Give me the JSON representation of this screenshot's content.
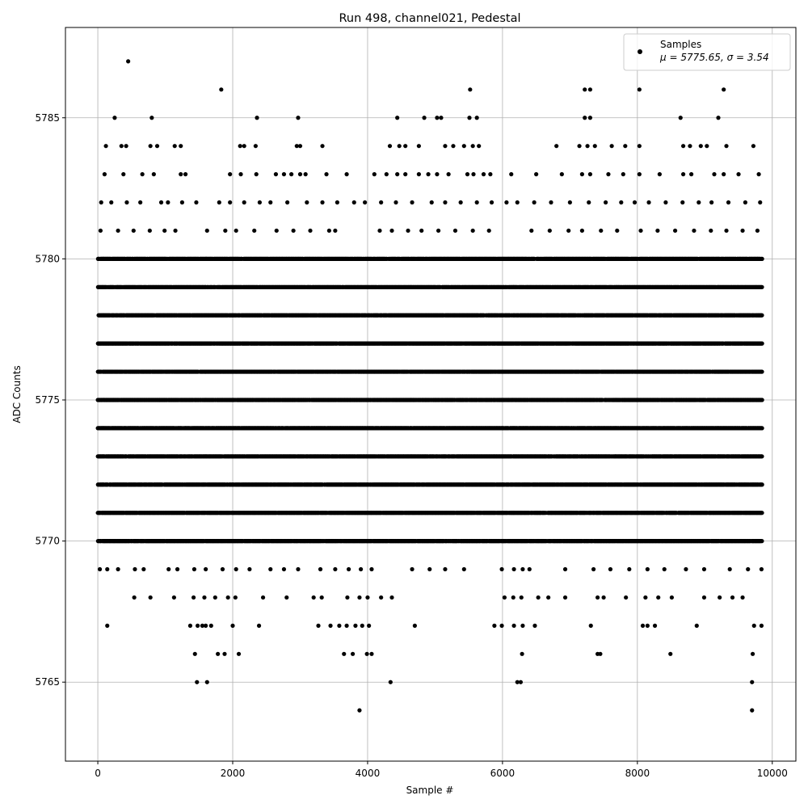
{
  "chart_data": {
    "type": "scatter",
    "title": "Run 498, channel021, Pedestal",
    "xlabel": "Sample #",
    "ylabel": "ADC Counts",
    "xlim": [
      -480,
      10350
    ],
    "ylim": [
      5762.2,
      5788.2
    ],
    "xticks": [
      0,
      2000,
      4000,
      6000,
      8000,
      10000
    ],
    "yticks": [
      5765,
      5770,
      5775,
      5780,
      5785
    ],
    "xtick_labels": [
      "0",
      "2000",
      "4000",
      "6000",
      "8000",
      "10000"
    ],
    "ytick_labels": [
      "5765",
      "5770",
      "5775",
      "5780",
      "5785"
    ],
    "grid": true,
    "legend_position": "top-right",
    "marker_color": "#000000",
    "series": [
      {
        "name": "Samples",
        "stats_label": "μ = 5775.65, σ = 3.54",
        "x_range": [
          0,
          9850
        ],
        "dense_levels": [
          5770,
          5771,
          5772,
          5773,
          5774,
          5775,
          5776,
          5777,
          5778,
          5779,
          5780
        ],
        "mean": 5775.65,
        "sigma": 3.54,
        "points": [
          [
            450,
            5787
          ],
          [
            1830,
            5786
          ],
          [
            5520,
            5786
          ],
          [
            7220,
            5786
          ],
          [
            7300,
            5786
          ],
          [
            8030,
            5786
          ],
          [
            9280,
            5786
          ],
          [
            250,
            5785
          ],
          [
            800,
            5785
          ],
          [
            2360,
            5785
          ],
          [
            2970,
            5785
          ],
          [
            4440,
            5785
          ],
          [
            4840,
            5785
          ],
          [
            5030,
            5785
          ],
          [
            5090,
            5785
          ],
          [
            5510,
            5785
          ],
          [
            5620,
            5785
          ],
          [
            7220,
            5785
          ],
          [
            7300,
            5785
          ],
          [
            8640,
            5785
          ],
          [
            9200,
            5785
          ],
          [
            120,
            5784
          ],
          [
            350,
            5784
          ],
          [
            420,
            5784
          ],
          [
            780,
            5784
          ],
          [
            880,
            5784
          ],
          [
            1140,
            5784
          ],
          [
            1230,
            5784
          ],
          [
            2110,
            5784
          ],
          [
            2170,
            5784
          ],
          [
            2340,
            5784
          ],
          [
            2950,
            5784
          ],
          [
            3000,
            5784
          ],
          [
            3330,
            5784
          ],
          [
            4330,
            5784
          ],
          [
            4470,
            5784
          ],
          [
            4560,
            5784
          ],
          [
            4760,
            5784
          ],
          [
            5150,
            5784
          ],
          [
            5270,
            5784
          ],
          [
            5430,
            5784
          ],
          [
            5560,
            5784
          ],
          [
            5650,
            5784
          ],
          [
            6800,
            5784
          ],
          [
            7140,
            5784
          ],
          [
            7260,
            5784
          ],
          [
            7370,
            5784
          ],
          [
            7620,
            5784
          ],
          [
            7820,
            5784
          ],
          [
            8030,
            5784
          ],
          [
            8680,
            5784
          ],
          [
            8780,
            5784
          ],
          [
            8940,
            5784
          ],
          [
            9030,
            5784
          ],
          [
            9320,
            5784
          ],
          [
            9720,
            5784
          ],
          [
            100,
            5783
          ],
          [
            380,
            5783
          ],
          [
            660,
            5783
          ],
          [
            830,
            5783
          ],
          [
            1230,
            5783
          ],
          [
            1300,
            5783
          ],
          [
            1960,
            5783
          ],
          [
            2120,
            5783
          ],
          [
            2350,
            5783
          ],
          [
            2640,
            5783
          ],
          [
            2760,
            5783
          ],
          [
            2870,
            5783
          ],
          [
            3000,
            5783
          ],
          [
            3080,
            5783
          ],
          [
            3390,
            5783
          ],
          [
            3690,
            5783
          ],
          [
            4100,
            5783
          ],
          [
            4280,
            5783
          ],
          [
            4440,
            5783
          ],
          [
            4560,
            5783
          ],
          [
            4760,
            5783
          ],
          [
            4900,
            5783
          ],
          [
            5030,
            5783
          ],
          [
            5200,
            5783
          ],
          [
            5480,
            5783
          ],
          [
            5570,
            5783
          ],
          [
            5720,
            5783
          ],
          [
            5820,
            5783
          ],
          [
            6130,
            5783
          ],
          [
            6500,
            5783
          ],
          [
            6880,
            5783
          ],
          [
            7180,
            5783
          ],
          [
            7300,
            5783
          ],
          [
            7570,
            5783
          ],
          [
            7790,
            5783
          ],
          [
            8030,
            5783
          ],
          [
            8330,
            5783
          ],
          [
            8680,
            5783
          ],
          [
            8800,
            5783
          ],
          [
            9140,
            5783
          ],
          [
            9280,
            5783
          ],
          [
            9500,
            5783
          ],
          [
            9800,
            5783
          ],
          [
            50,
            5782
          ],
          [
            200,
            5782
          ],
          [
            430,
            5782
          ],
          [
            630,
            5782
          ],
          [
            940,
            5782
          ],
          [
            1040,
            5782
          ],
          [
            1250,
            5782
          ],
          [
            1460,
            5782
          ],
          [
            1800,
            5782
          ],
          [
            1960,
            5782
          ],
          [
            2170,
            5782
          ],
          [
            2400,
            5782
          ],
          [
            2560,
            5782
          ],
          [
            2810,
            5782
          ],
          [
            3100,
            5782
          ],
          [
            3330,
            5782
          ],
          [
            3550,
            5782
          ],
          [
            3800,
            5782
          ],
          [
            3960,
            5782
          ],
          [
            4200,
            5782
          ],
          [
            4420,
            5782
          ],
          [
            4660,
            5782
          ],
          [
            4950,
            5782
          ],
          [
            5150,
            5782
          ],
          [
            5380,
            5782
          ],
          [
            5620,
            5782
          ],
          [
            5840,
            5782
          ],
          [
            6060,
            5782
          ],
          [
            6220,
            5782
          ],
          [
            6470,
            5782
          ],
          [
            6720,
            5782
          ],
          [
            7000,
            5782
          ],
          [
            7280,
            5782
          ],
          [
            7530,
            5782
          ],
          [
            7760,
            5782
          ],
          [
            7960,
            5782
          ],
          [
            8170,
            5782
          ],
          [
            8420,
            5782
          ],
          [
            8670,
            5782
          ],
          [
            8910,
            5782
          ],
          [
            9100,
            5782
          ],
          [
            9350,
            5782
          ],
          [
            9600,
            5782
          ],
          [
            9820,
            5782
          ],
          [
            40,
            5781
          ],
          [
            300,
            5781
          ],
          [
            530,
            5781
          ],
          [
            770,
            5781
          ],
          [
            990,
            5781
          ],
          [
            1150,
            5781
          ],
          [
            1620,
            5781
          ],
          [
            1890,
            5781
          ],
          [
            2050,
            5781
          ],
          [
            2320,
            5781
          ],
          [
            2650,
            5781
          ],
          [
            2900,
            5781
          ],
          [
            3150,
            5781
          ],
          [
            3430,
            5781
          ],
          [
            3520,
            5781
          ],
          [
            4180,
            5781
          ],
          [
            4360,
            5781
          ],
          [
            4600,
            5781
          ],
          [
            4800,
            5781
          ],
          [
            5050,
            5781
          ],
          [
            5300,
            5781
          ],
          [
            5560,
            5781
          ],
          [
            5800,
            5781
          ],
          [
            6430,
            5781
          ],
          [
            6700,
            5781
          ],
          [
            6980,
            5781
          ],
          [
            7180,
            5781
          ],
          [
            7460,
            5781
          ],
          [
            7700,
            5781
          ],
          [
            8050,
            5781
          ],
          [
            8300,
            5781
          ],
          [
            8560,
            5781
          ],
          [
            8840,
            5781
          ],
          [
            9090,
            5781
          ],
          [
            9320,
            5781
          ],
          [
            9560,
            5781
          ],
          [
            9780,
            5781
          ],
          [
            30,
            5769
          ],
          [
            140,
            5769
          ],
          [
            300,
            5769
          ],
          [
            550,
            5769
          ],
          [
            680,
            5769
          ],
          [
            1050,
            5769
          ],
          [
            1180,
            5769
          ],
          [
            1430,
            5769
          ],
          [
            1600,
            5769
          ],
          [
            1850,
            5769
          ],
          [
            2050,
            5769
          ],
          [
            2250,
            5769
          ],
          [
            2560,
            5769
          ],
          [
            2760,
            5769
          ],
          [
            2970,
            5769
          ],
          [
            3300,
            5769
          ],
          [
            3520,
            5769
          ],
          [
            3720,
            5769
          ],
          [
            3900,
            5769
          ],
          [
            4060,
            5769
          ],
          [
            4660,
            5769
          ],
          [
            4920,
            5769
          ],
          [
            5150,
            5769
          ],
          [
            5430,
            5769
          ],
          [
            5990,
            5769
          ],
          [
            6170,
            5769
          ],
          [
            6300,
            5769
          ],
          [
            6400,
            5769
          ],
          [
            6930,
            5769
          ],
          [
            7350,
            5769
          ],
          [
            7600,
            5769
          ],
          [
            7880,
            5769
          ],
          [
            8150,
            5769
          ],
          [
            8400,
            5769
          ],
          [
            8720,
            5769
          ],
          [
            8990,
            5769
          ],
          [
            9370,
            5769
          ],
          [
            9640,
            5769
          ],
          [
            9840,
            5769
          ],
          [
            540,
            5768
          ],
          [
            780,
            5768
          ],
          [
            1130,
            5768
          ],
          [
            1420,
            5768
          ],
          [
            1580,
            5768
          ],
          [
            1740,
            5768
          ],
          [
            1930,
            5768
          ],
          [
            2040,
            5768
          ],
          [
            2450,
            5768
          ],
          [
            2800,
            5768
          ],
          [
            3200,
            5768
          ],
          [
            3320,
            5768
          ],
          [
            3700,
            5768
          ],
          [
            3880,
            5768
          ],
          [
            4000,
            5768
          ],
          [
            4200,
            5768
          ],
          [
            4360,
            5768
          ],
          [
            6030,
            5768
          ],
          [
            6160,
            5768
          ],
          [
            6280,
            5768
          ],
          [
            6530,
            5768
          ],
          [
            6680,
            5768
          ],
          [
            6930,
            5768
          ],
          [
            7410,
            5768
          ],
          [
            7500,
            5768
          ],
          [
            7830,
            5768
          ],
          [
            8120,
            5768
          ],
          [
            8310,
            5768
          ],
          [
            8510,
            5768
          ],
          [
            8990,
            5768
          ],
          [
            9220,
            5768
          ],
          [
            9410,
            5768
          ],
          [
            9560,
            5768
          ],
          [
            140,
            5767
          ],
          [
            1370,
            5767
          ],
          [
            1480,
            5767
          ],
          [
            1550,
            5767
          ],
          [
            1600,
            5767
          ],
          [
            1680,
            5767
          ],
          [
            2000,
            5767
          ],
          [
            2390,
            5767
          ],
          [
            3270,
            5767
          ],
          [
            3450,
            5767
          ],
          [
            3580,
            5767
          ],
          [
            3690,
            5767
          ],
          [
            3820,
            5767
          ],
          [
            3920,
            5767
          ],
          [
            4020,
            5767
          ],
          [
            4700,
            5767
          ],
          [
            5880,
            5767
          ],
          [
            5990,
            5767
          ],
          [
            6170,
            5767
          ],
          [
            6300,
            5767
          ],
          [
            6480,
            5767
          ],
          [
            7310,
            5767
          ],
          [
            8080,
            5767
          ],
          [
            8150,
            5767
          ],
          [
            8260,
            5767
          ],
          [
            8880,
            5767
          ],
          [
            9730,
            5767
          ],
          [
            9840,
            5767
          ],
          [
            1440,
            5766
          ],
          [
            1780,
            5766
          ],
          [
            1880,
            5766
          ],
          [
            2090,
            5766
          ],
          [
            3650,
            5766
          ],
          [
            3780,
            5766
          ],
          [
            3990,
            5766
          ],
          [
            4060,
            5766
          ],
          [
            6290,
            5766
          ],
          [
            7410,
            5766
          ],
          [
            7450,
            5766
          ],
          [
            8490,
            5766
          ],
          [
            9710,
            5766
          ],
          [
            1470,
            5765
          ],
          [
            1620,
            5765
          ],
          [
            4340,
            5765
          ],
          [
            6220,
            5765
          ],
          [
            6270,
            5765
          ],
          [
            9700,
            5765
          ],
          [
            3880,
            5764
          ],
          [
            9700,
            5764
          ]
        ]
      }
    ]
  }
}
